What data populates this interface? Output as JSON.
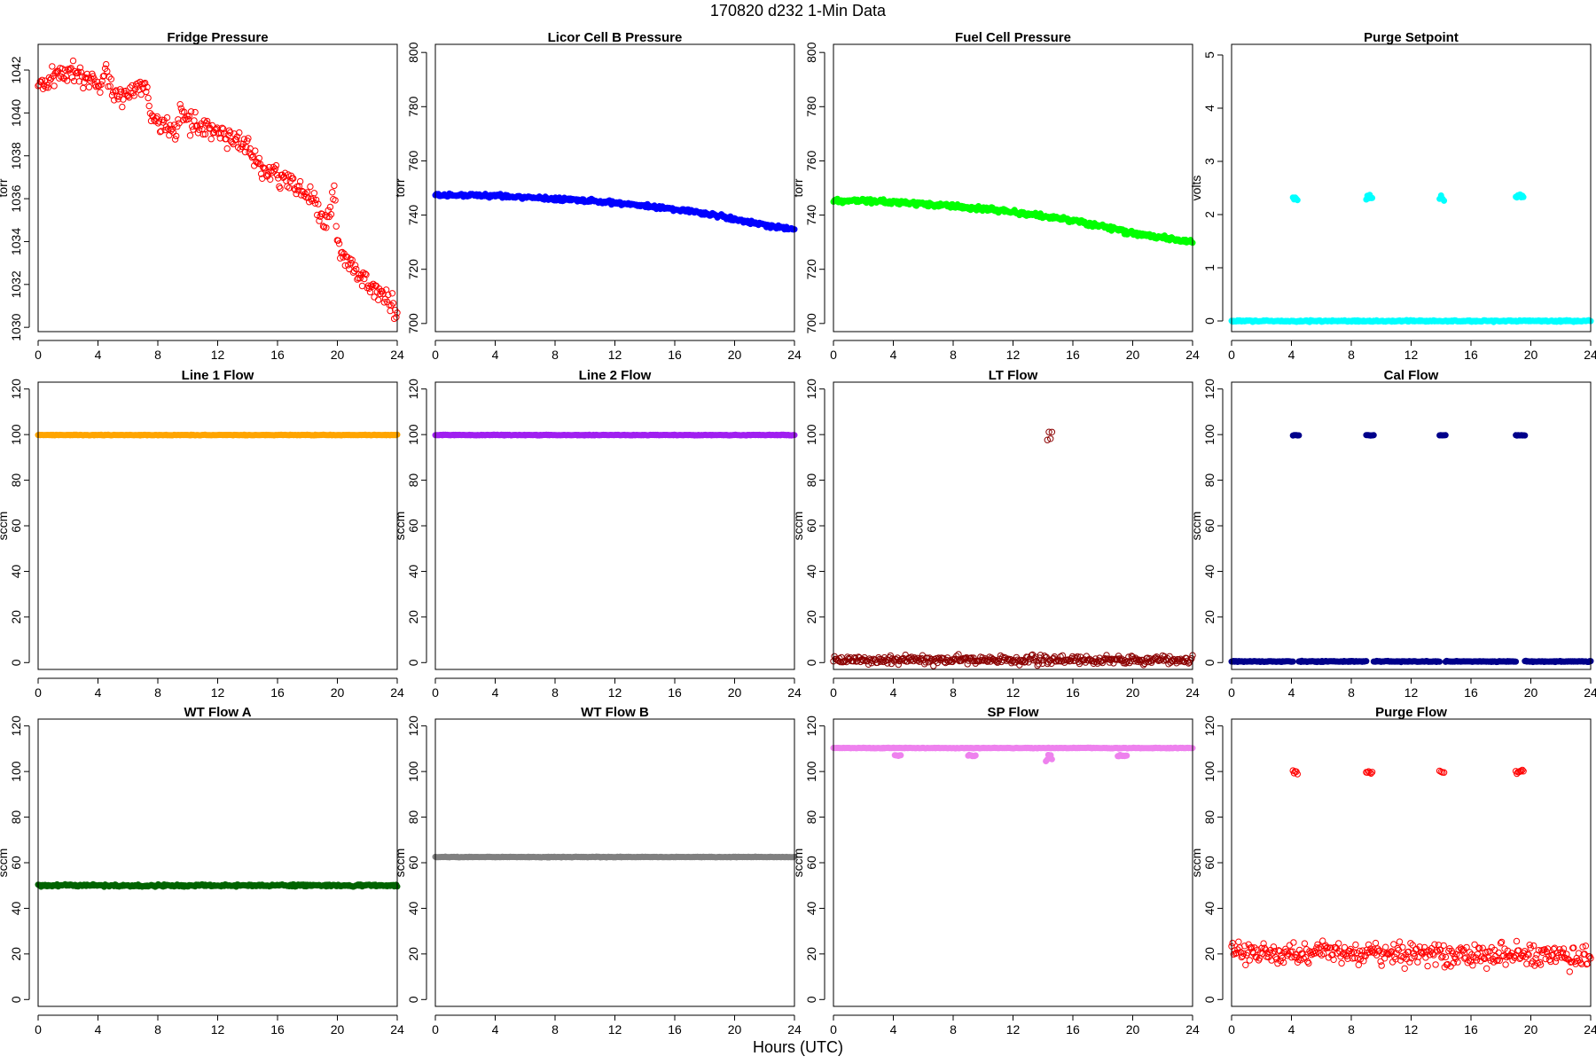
{
  "figure": {
    "title": "170820    d232    1-Min Data",
    "xlabel": "Hours (UTC)"
  },
  "chart_data": [
    {
      "type": "scatter",
      "title": "Fridge Pressure",
      "ylabel": "torr",
      "color": "#ff0000",
      "marker": "open",
      "xlim": [
        0,
        24
      ],
      "ylim": [
        1029.8,
        1043.2
      ],
      "xticks": [
        0,
        4,
        8,
        12,
        16,
        20,
        24
      ],
      "yticks": [
        1030,
        1032,
        1034,
        1036,
        1038,
        1040,
        1042
      ],
      "series": [
        {
          "segments": [
            {
              "x": [
                0,
                0.5,
                1,
                2,
                3,
                3.8,
                4.3,
                4.5,
                5,
                6,
                6.8,
                7.3,
                7.5,
                8,
                8.8,
                9.3,
                9.5,
                10,
                11,
                12,
                13,
                14,
                14.5,
                15,
                16,
                17,
                18,
                18.5,
                19,
                19.2,
                19.5,
                19.8,
                20,
                20.5,
                21,
                22,
                23,
                24
              ],
              "y": [
                1041.4,
                1041.2,
                1041.7,
                1041.9,
                1041.7,
                1041.5,
                1041.2,
                1042.3,
                1040.8,
                1040.9,
                1041.2,
                1041.0,
                1040.0,
                1039.6,
                1039.3,
                1039.1,
                1040.3,
                1039.5,
                1039.4,
                1039.1,
                1038.8,
                1038.3,
                1037.9,
                1037.3,
                1037.0,
                1036.7,
                1036.2,
                1035.8,
                1035.0,
                1034.7,
                1035.5,
                1036.3,
                1034.3,
                1033.2,
                1032.8,
                1032.1,
                1031.4,
                1030.7
              ],
              "spread": 0.35
            }
          ]
        }
      ]
    },
    {
      "type": "scatter",
      "title": "Licor Cell B Pressure",
      "ylabel": "torr",
      "color": "#0000ff",
      "marker": "filled",
      "xlim": [
        0,
        24
      ],
      "ylim": [
        697,
        803
      ],
      "xticks": [
        0,
        4,
        8,
        12,
        16,
        20,
        24
      ],
      "yticks": [
        700,
        720,
        740,
        760,
        780,
        800
      ],
      "series": [
        {
          "segments": [
            {
              "x": [
                0,
                1,
                2,
                4,
                6,
                8,
                10,
                12,
                14,
                16,
                18,
                20,
                22,
                24
              ],
              "y": [
                747.5,
                747.3,
                747.5,
                747.1,
                746.6,
                746.1,
                745.4,
                744.6,
                743.5,
                742.2,
                740.7,
                738.5,
                736.3,
                734.8
              ],
              "spread": 0.5
            }
          ]
        }
      ]
    },
    {
      "type": "scatter",
      "title": "Fuel Cell Pressure",
      "ylabel": "torr",
      "color": "#00ff00",
      "marker": "filled",
      "xlim": [
        0,
        24
      ],
      "ylim": [
        697,
        803
      ],
      "xticks": [
        0,
        4,
        8,
        12,
        16,
        20,
        24
      ],
      "yticks": [
        700,
        720,
        740,
        760,
        780,
        800
      ],
      "series": [
        {
          "segments": [
            {
              "x": [
                0,
                0.5,
                1,
                2,
                4,
                6,
                8,
                10,
                12,
                14,
                16,
                18,
                20,
                22,
                24
              ],
              "y": [
                745.3,
                744.8,
                745.6,
                745.3,
                744.7,
                744.0,
                743.3,
                742.4,
                741.3,
                739.8,
                738.0,
                735.8,
                733.3,
                731.5,
                730.2
              ],
              "spread": 0.6
            }
          ]
        }
      ]
    },
    {
      "type": "scatter",
      "title": "Purge Setpoint",
      "ylabel": "volts",
      "color": "#00ffff",
      "marker": "filled",
      "xlim": [
        0,
        24
      ],
      "ylim": [
        -0.2,
        5.2
      ],
      "xticks": [
        0,
        4,
        8,
        12,
        16,
        20,
        24
      ],
      "yticks": [
        0,
        1,
        2,
        3,
        4,
        5
      ],
      "series": [
        {
          "segments": [
            {
              "x": [
                0,
                24
              ],
              "y": [
                0,
                0
              ],
              "spread": 0.01
            },
            {
              "x": [
                4.1,
                4.4
              ],
              "y": [
                2.3,
                2.3
              ],
              "spread": 0.03
            },
            {
              "x": [
                9.0,
                9.4
              ],
              "y": [
                2.32,
                2.34
              ],
              "spread": 0.03
            },
            {
              "x": [
                13.9,
                14.2
              ],
              "y": [
                2.31,
                2.31
              ],
              "spread": 0.03
            },
            {
              "x": [
                19.0,
                19.5
              ],
              "y": [
                2.32,
                2.38
              ],
              "spread": 0.04
            }
          ]
        }
      ]
    },
    {
      "type": "scatter",
      "title": "Line 1 Flow",
      "ylabel": "sccm",
      "color": "#ffa500",
      "marker": "filled",
      "xlim": [
        0,
        24
      ],
      "ylim": [
        -3,
        123
      ],
      "xticks": [
        0,
        4,
        8,
        12,
        16,
        20,
        24
      ],
      "yticks": [
        0,
        20,
        40,
        60,
        80,
        100,
        120
      ],
      "series": [
        {
          "segments": [
            {
              "x": [
                0,
                24
              ],
              "y": [
                99.8,
                99.8
              ],
              "spread": 0.1
            }
          ]
        }
      ]
    },
    {
      "type": "scatter",
      "title": "Line 2 Flow",
      "ylabel": "sccm",
      "color": "#a020f0",
      "marker": "filled",
      "xlim": [
        0,
        24
      ],
      "ylim": [
        -3,
        123
      ],
      "xticks": [
        0,
        4,
        8,
        12,
        16,
        20,
        24
      ],
      "yticks": [
        0,
        20,
        40,
        60,
        80,
        100,
        120
      ],
      "series": [
        {
          "segments": [
            {
              "x": [
                0,
                24
              ],
              "y": [
                99.8,
                99.8
              ],
              "spread": 0.1
            }
          ]
        }
      ]
    },
    {
      "type": "scatter",
      "title": "LT Flow",
      "ylabel": "sccm",
      "color": "#8b0000",
      "marker": "open",
      "xlim": [
        0,
        24
      ],
      "ylim": [
        -3,
        123
      ],
      "xticks": [
        0,
        4,
        8,
        12,
        16,
        20,
        24
      ],
      "yticks": [
        0,
        20,
        40,
        60,
        80,
        100,
        120
      ],
      "series": [
        {
          "segments": [
            {
              "x": [
                0,
                24
              ],
              "y": [
                1.2,
                1.2
              ],
              "spread": 1.3
            },
            {
              "x": [
                14.3,
                14.6
              ],
              "y": [
                99.5,
                99.5
              ],
              "spread": 1.5
            }
          ]
        }
      ]
    },
    {
      "type": "scatter",
      "title": "Cal Flow",
      "ylabel": "sccm",
      "color": "#00008b",
      "marker": "filled",
      "xlim": [
        0,
        24
      ],
      "ylim": [
        -3,
        123
      ],
      "xticks": [
        0,
        4,
        8,
        12,
        16,
        20,
        24
      ],
      "yticks": [
        0,
        20,
        40,
        60,
        80,
        100,
        120
      ],
      "series": [
        {
          "segments": [
            {
              "x": [
                0,
                4.1
              ],
              "y": [
                0.5,
                0.5
              ],
              "spread": 0.15
            },
            {
              "x": [
                4.5,
                9.0
              ],
              "y": [
                0.5,
                0.5
              ],
              "spread": 0.15
            },
            {
              "x": [
                9.5,
                13.9
              ],
              "y": [
                0.5,
                0.5
              ],
              "spread": 0.15
            },
            {
              "x": [
                14.3,
                19.0
              ],
              "y": [
                0.5,
                0.5
              ],
              "spread": 0.15
            },
            {
              "x": [
                19.6,
                24
              ],
              "y": [
                0.5,
                0.5
              ],
              "spread": 0.15
            },
            {
              "x": [
                4.1,
                4.5
              ],
              "y": [
                99.7,
                99.7
              ],
              "spread": 0.1
            },
            {
              "x": [
                9.0,
                9.5
              ],
              "y": [
                99.7,
                99.7
              ],
              "spread": 0.1
            },
            {
              "x": [
                13.9,
                14.3
              ],
              "y": [
                99.7,
                99.7
              ],
              "spread": 0.1
            },
            {
              "x": [
                19.0,
                19.6
              ],
              "y": [
                99.7,
                99.7
              ],
              "spread": 0.1
            }
          ]
        }
      ]
    },
    {
      "type": "scatter",
      "title": "WT Flow A",
      "ylabel": "sccm",
      "color": "#006400",
      "marker": "filled",
      "xlim": [
        0,
        24
      ],
      "ylim": [
        -3,
        123
      ],
      "xticks": [
        0,
        4,
        8,
        12,
        16,
        20,
        24
      ],
      "yticks": [
        0,
        20,
        40,
        60,
        80,
        100,
        120
      ],
      "series": [
        {
          "segments": [
            {
              "x": [
                0,
                24
              ],
              "y": [
                50,
                50
              ],
              "spread": 0.35
            }
          ]
        }
      ]
    },
    {
      "type": "scatter",
      "title": "WT Flow B",
      "ylabel": "sccm",
      "color": "#808080",
      "marker": "filled",
      "xlim": [
        0,
        24
      ],
      "ylim": [
        -3,
        123
      ],
      "xticks": [
        0,
        4,
        8,
        12,
        16,
        20,
        24
      ],
      "yticks": [
        0,
        20,
        40,
        60,
        80,
        100,
        120
      ],
      "series": [
        {
          "segments": [
            {
              "x": [
                0,
                24
              ],
              "y": [
                62.5,
                62.5
              ],
              "spread": 0.1
            }
          ]
        }
      ]
    },
    {
      "type": "scatter",
      "title": "SP Flow",
      "ylabel": "sccm",
      "color": "#ee82ee",
      "marker": "filled",
      "xlim": [
        0,
        24
      ],
      "ylim": [
        -3,
        123
      ],
      "xticks": [
        0,
        4,
        8,
        12,
        16,
        20,
        24
      ],
      "yticks": [
        0,
        20,
        40,
        60,
        80,
        100,
        120
      ],
      "series": [
        {
          "segments": [
            {
              "x": [
                0,
                24
              ],
              "y": [
                110.3,
                110.3
              ],
              "spread": 0.1
            },
            {
              "x": [
                4.1,
                4.5
              ],
              "y": [
                107,
                107
              ],
              "spread": 0.2
            },
            {
              "x": [
                9.0,
                9.5
              ],
              "y": [
                107,
                107
              ],
              "spread": 0.2
            },
            {
              "x": [
                14.2,
                14.6
              ],
              "y": [
                106,
                106
              ],
              "spread": 1.0
            },
            {
              "x": [
                19.0,
                19.6
              ],
              "y": [
                107,
                107
              ],
              "spread": 0.2
            }
          ]
        }
      ]
    },
    {
      "type": "scatter",
      "title": "Purge Flow",
      "ylabel": "sccm",
      "color": "#ff0000",
      "marker": "open",
      "xlim": [
        0,
        24
      ],
      "ylim": [
        -3,
        123
      ],
      "xticks": [
        0,
        4,
        8,
        12,
        16,
        20,
        24
      ],
      "yticks": [
        0,
        20,
        40,
        60,
        80,
        100,
        120
      ],
      "series": [
        {
          "segments": [
            {
              "x": [
                0,
                6,
                12,
                18,
                24
              ],
              "y": [
                20,
                21,
                20,
                20,
                18.5
              ],
              "spread": 3.5
            },
            {
              "x": [
                4.1,
                4.4
              ],
              "y": [
                99.7,
                99.7
              ],
              "spread": 0.6
            },
            {
              "x": [
                9.0,
                9.4
              ],
              "y": [
                99.7,
                99.7
              ],
              "spread": 0.6
            },
            {
              "x": [
                13.9,
                14.2
              ],
              "y": [
                99.7,
                99.7
              ],
              "spread": 0.6
            },
            {
              "x": [
                19.0,
                19.5
              ],
              "y": [
                99.7,
                99.7
              ],
              "spread": 0.8
            }
          ]
        }
      ]
    }
  ]
}
